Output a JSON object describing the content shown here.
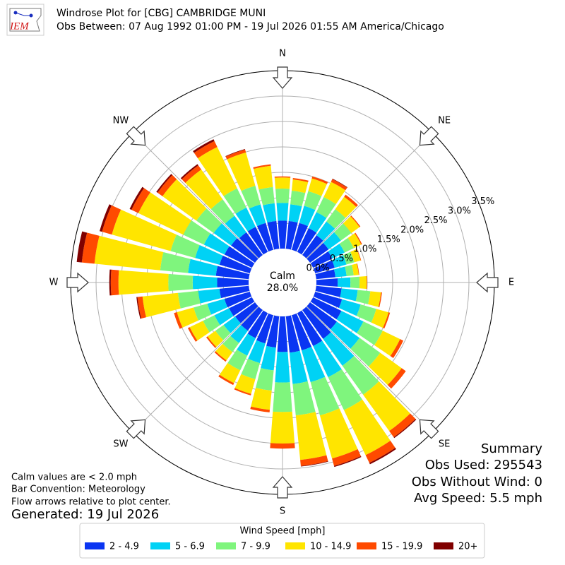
{
  "chart_data": {
    "type": "windrose",
    "title": "Windrose Plot for [CBG] CAMBRIDGE MUNI",
    "subtitle": "Obs Between: 07 Aug 1992 01:00 PM - 19 Jul 2026 01:55 AM America/Chicago",
    "logo_text": "IEM",
    "calm_title": "Calm",
    "calm_label": "28.0%",
    "x": [
      0,
      10,
      20,
      30,
      40,
      50,
      60,
      70,
      80,
      90,
      100,
      110,
      120,
      130,
      140,
      150,
      160,
      170,
      180,
      190,
      200,
      210,
      220,
      230,
      240,
      250,
      260,
      270,
      280,
      290,
      300,
      310,
      320,
      330,
      340,
      350
    ],
    "xticks": [
      {
        "value": 0,
        "label": "N"
      },
      {
        "value": 45,
        "label": "NE"
      },
      {
        "value": 90,
        "label": "E"
      },
      {
        "value": 135,
        "label": "SE"
      },
      {
        "value": 180,
        "label": "S"
      },
      {
        "value": 225,
        "label": "SW"
      },
      {
        "value": 270,
        "label": "W"
      },
      {
        "value": 315,
        "label": "NW"
      }
    ],
    "ylim": [
      0,
      3.5
    ],
    "yticks": [
      {
        "value": 0,
        "label": "0.0%"
      },
      {
        "value": 0.5,
        "label": "0.5%"
      },
      {
        "value": 1.0,
        "label": "1.0%"
      },
      {
        "value": 1.5,
        "label": "1.5%"
      },
      {
        "value": 2.0,
        "label": "2.0%"
      },
      {
        "value": 2.5,
        "label": "2.5%"
      },
      {
        "value": 3.0,
        "label": "3.0%"
      },
      {
        "value": 3.5,
        "label": "3.5%"
      }
    ],
    "grid": true,
    "legend_title": "Wind Speed [mph]",
    "series": [
      {
        "name": "2 - 4.9",
        "color": "#0a35f2",
        "values": [
          0.55,
          0.55,
          0.55,
          0.52,
          0.48,
          0.45,
          0.42,
          0.4,
          0.38,
          0.42,
          0.5,
          0.55,
          0.62,
          0.65,
          0.7,
          0.72,
          0.72,
          0.72,
          0.7,
          0.62,
          0.58,
          0.55,
          0.5,
          0.48,
          0.5,
          0.52,
          0.58,
          0.62,
          0.65,
          0.62,
          0.6,
          0.58,
          0.55,
          0.55,
          0.55,
          0.55
        ]
      },
      {
        "name": "5 - 6.9",
        "color": "#00d2f5",
        "values": [
          0.35,
          0.33,
          0.35,
          0.35,
          0.33,
          0.3,
          0.27,
          0.24,
          0.22,
          0.25,
          0.32,
          0.38,
          0.48,
          0.55,
          0.65,
          0.68,
          0.65,
          0.62,
          0.6,
          0.45,
          0.4,
          0.38,
          0.3,
          0.28,
          0.32,
          0.35,
          0.42,
          0.48,
          0.55,
          0.5,
          0.45,
          0.42,
          0.4,
          0.42,
          0.38,
          0.35
        ]
      },
      {
        "name": "7 - 9.9",
        "color": "#7ff57d",
        "values": [
          0.28,
          0.27,
          0.3,
          0.33,
          0.3,
          0.25,
          0.2,
          0.16,
          0.14,
          0.18,
          0.25,
          0.32,
          0.42,
          0.5,
          0.7,
          0.72,
          0.68,
          0.62,
          0.58,
          0.4,
          0.33,
          0.32,
          0.22,
          0.2,
          0.25,
          0.28,
          0.4,
          0.48,
          0.55,
          0.5,
          0.45,
          0.42,
          0.4,
          0.42,
          0.38,
          0.32
        ]
      },
      {
        "name": "10 - 14.9",
        "color": "#ffe500",
        "values": [
          0.22,
          0.22,
          0.26,
          0.33,
          0.3,
          0.2,
          0.16,
          0.13,
          0.1,
          0.14,
          0.21,
          0.25,
          0.38,
          0.52,
          0.88,
          0.98,
          0.88,
          0.88,
          0.62,
          0.38,
          0.3,
          0.28,
          0.2,
          0.19,
          0.29,
          0.34,
          0.7,
          0.98,
          1.3,
          1.2,
          0.98,
          0.82,
          0.72,
          0.9,
          0.68,
          0.42
        ]
      },
      {
        "name": "15 - 19.9",
        "color": "#ff4a00",
        "values": [
          0.02,
          0.03,
          0.04,
          0.06,
          0.05,
          0.02,
          0.02,
          0.01,
          0.01,
          0.01,
          0.02,
          0.03,
          0.07,
          0.1,
          0.15,
          0.17,
          0.15,
          0.12,
          0.1,
          0.05,
          0.03,
          0.04,
          0.03,
          0.03,
          0.04,
          0.06,
          0.1,
          0.15,
          0.25,
          0.2,
          0.15,
          0.12,
          0.1,
          0.13,
          0.06,
          0.03
        ]
      },
      {
        "name": "20+",
        "color": "#800000",
        "values": [
          0,
          0,
          0,
          0.01,
          0,
          0,
          0,
          0,
          0,
          0,
          0,
          0,
          0,
          0,
          0.02,
          0.03,
          0.02,
          0.01,
          0,
          0,
          0,
          0,
          0,
          0,
          0,
          0,
          0.02,
          0.03,
          0.1,
          0.05,
          0.04,
          0.03,
          0.03,
          0.04,
          0.01,
          0
        ]
      }
    ],
    "notes": [
      "Calm values are < 2.0 mph",
      "Bar Convention: Meteorology",
      "Flow arrows relative to plot center."
    ],
    "generated": "Generated: 19 Jul 2026",
    "summary": [
      "Summary",
      "Obs Used: 295543",
      "Obs Without Wind: 0",
      "Avg Speed: 5.5 mph"
    ]
  }
}
